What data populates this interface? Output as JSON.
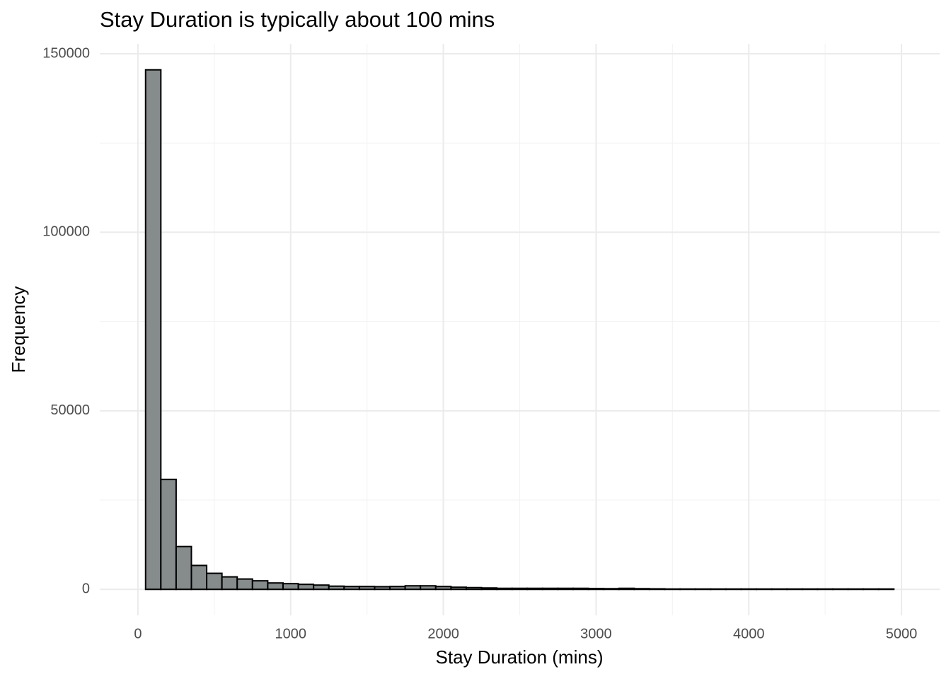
{
  "chart_data": {
    "type": "histogram",
    "title": "Stay Duration is typically about 100 mins",
    "x_label": "Stay Duration (mins)",
    "y_label": "Frequency",
    "bins": [
      50,
      150,
      250,
      350,
      450,
      550,
      650,
      750,
      850,
      950,
      1050,
      1150,
      1250,
      1350,
      1450,
      1550,
      1650,
      1750,
      1850,
      1950,
      2050,
      2150,
      2250,
      2350,
      2450,
      2550,
      2650,
      2750,
      2850,
      2950,
      3050,
      3150,
      3250,
      3350,
      3450,
      3550,
      3650,
      3750,
      3850,
      3950,
      4050,
      4150,
      4250,
      4350,
      4450,
      4550,
      4650,
      4750,
      4850,
      4950
    ],
    "values": [
      145500,
      30800,
      12000,
      6700,
      4500,
      3500,
      2900,
      2400,
      1800,
      1600,
      1400,
      1200,
      900,
      800,
      800,
      750,
      800,
      1000,
      1000,
      800,
      600,
      500,
      400,
      300,
      300,
      300,
      300,
      300,
      300,
      250,
      200,
      300,
      200,
      150,
      100,
      100,
      100,
      100,
      100,
      100,
      100,
      100,
      100,
      100,
      100,
      100,
      100,
      100,
      100
    ],
    "color": "#868b8b",
    "xlim": [
      -250,
      5250
    ],
    "ylim": [
      -7275,
      152775
    ],
    "xticks": [
      0,
      1000,
      2000,
      3000,
      4000,
      5000
    ],
    "yticks": [
      0,
      50000,
      100000,
      150000
    ],
    "x_minor_ticks": [
      500,
      1500,
      2500,
      3500,
      4500
    ],
    "y_minor_ticks": [
      25000,
      75000,
      125000
    ],
    "grid": true
  }
}
